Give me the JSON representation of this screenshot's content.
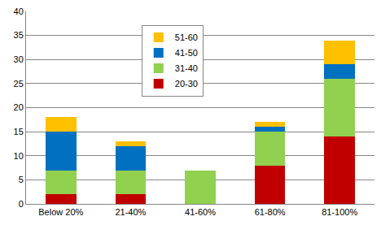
{
  "chart_data": {
    "type": "bar",
    "stacked": true,
    "categories": [
      "Below 20%",
      "21-40%",
      "41-60%",
      "61-80%",
      "81-100%"
    ],
    "series": [
      {
        "name": "20-30",
        "color": "#c00000",
        "values": [
          2,
          2,
          0,
          8,
          14
        ]
      },
      {
        "name": "31-40",
        "color": "#92d050",
        "values": [
          5,
          5,
          7,
          7,
          12
        ]
      },
      {
        "name": "41-50",
        "color": "#0070c0",
        "values": [
          8,
          5,
          0,
          1,
          3
        ]
      },
      {
        "name": "51-60",
        "color": "#ffc000",
        "values": [
          3,
          1,
          0,
          1,
          5
        ]
      }
    ],
    "ylim": [
      0,
      40
    ],
    "yticks": [
      0,
      5,
      10,
      15,
      20,
      25,
      30,
      35,
      40
    ],
    "grid": true,
    "legend": "top"
  }
}
